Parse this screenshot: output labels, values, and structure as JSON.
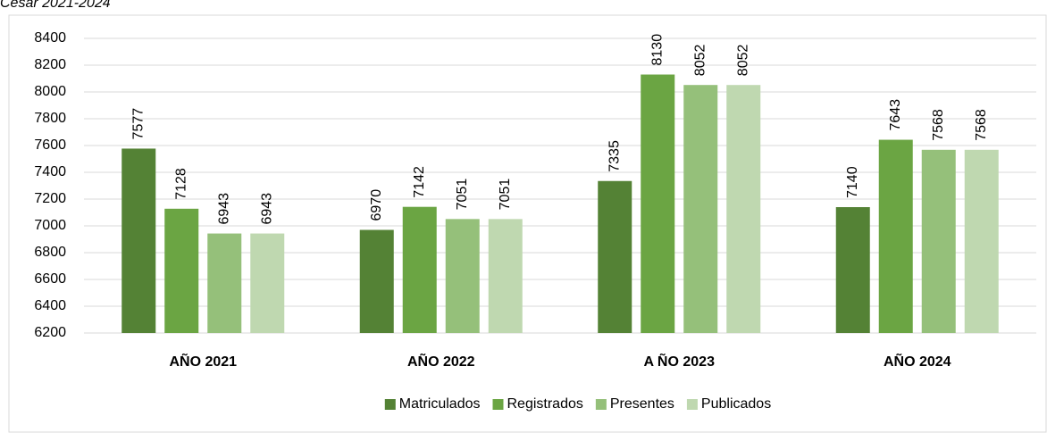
{
  "chart_data": {
    "type": "bar",
    "title": "Cesar 2021-2024",
    "categories": [
      "AÑO 2021",
      "AÑO 2022",
      "A ÑO 2023",
      "AÑO 2024"
    ],
    "series": [
      {
        "name": "Matriculados",
        "color": "#548235",
        "values": [
          7577,
          6970,
          7335,
          7140
        ]
      },
      {
        "name": "Registrados",
        "color": "#6ba543",
        "values": [
          7128,
          7142,
          8130,
          7643
        ]
      },
      {
        "name": "Presentes",
        "color": "#95c07a",
        "values": [
          6943,
          7051,
          8052,
          7568
        ]
      },
      {
        "name": "Publicados",
        "color": "#bfd8b0",
        "values": [
          6943,
          7051,
          8052,
          7568
        ]
      }
    ],
    "ylim": [
      6200,
      8400
    ],
    "yticks": [
      6200,
      6400,
      6600,
      6800,
      7000,
      7200,
      7400,
      7600,
      7800,
      8000,
      8200,
      8400
    ],
    "grid": true,
    "legend": "bottom"
  }
}
